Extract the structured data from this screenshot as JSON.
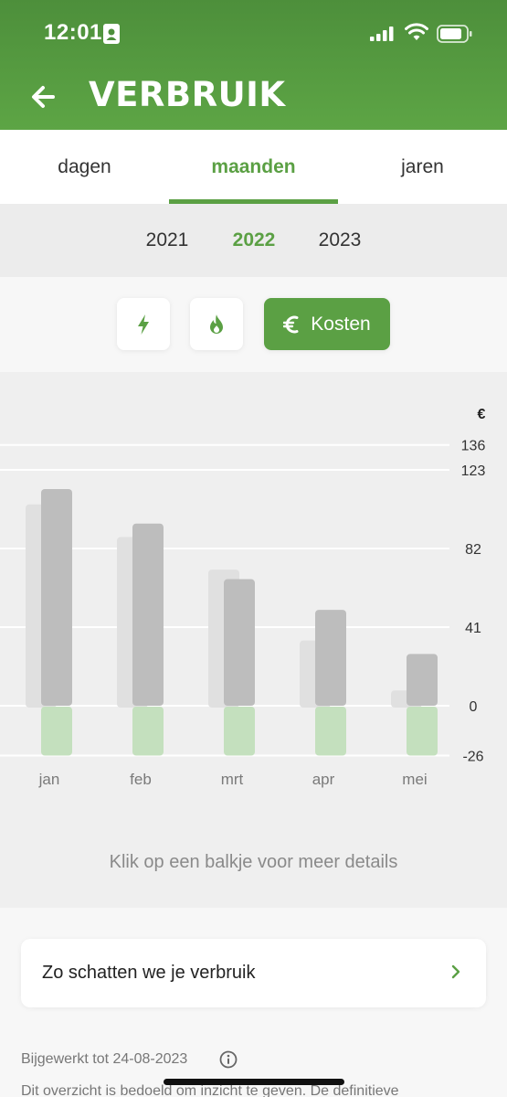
{
  "status": {
    "time": "12:01"
  },
  "header": {
    "title": "VERBRUIK"
  },
  "tabs": [
    {
      "label": "dagen",
      "active": false
    },
    {
      "label": "maanden",
      "active": true
    },
    {
      "label": "jaren",
      "active": false
    }
  ],
  "years": [
    {
      "label": "2021",
      "active": false
    },
    {
      "label": "2022",
      "active": true
    },
    {
      "label": "2023",
      "active": false
    }
  ],
  "filters": {
    "electricity_icon": "bolt-icon",
    "gas_icon": "flame-icon",
    "costs_icon": "euro-icon",
    "costs_label": "Kosten"
  },
  "colors": {
    "brand": "#5ba044",
    "bar_current": "#bdbdbd",
    "bar_previous": "#e0e0e0",
    "bar_negative": "#c4e0be"
  },
  "chart_data": {
    "type": "bar",
    "unit": "€",
    "categories": [
      "jan",
      "feb",
      "mrt",
      "apr",
      "mei"
    ],
    "y_ticks": [
      136,
      123,
      82,
      41,
      0,
      -26
    ],
    "ylim": [
      -26,
      136
    ],
    "series": [
      {
        "values": [
          105,
          88,
          71,
          34,
          8
        ]
      },
      {
        "values": [
          113,
          95,
          66,
          50,
          27
        ]
      },
      {
        "values": [
          -26,
          -26,
          -26,
          -26,
          -26
        ]
      }
    ],
    "grid": true
  },
  "hint": "Klik op een balkje voor meer details",
  "estimate_card": {
    "label": "Zo schatten we je verbruik"
  },
  "updated": "Bijgewerkt tot 24-08-2023",
  "disclaimer": "Dit overzicht is bedoeld om inzicht te geven. De definitieve"
}
